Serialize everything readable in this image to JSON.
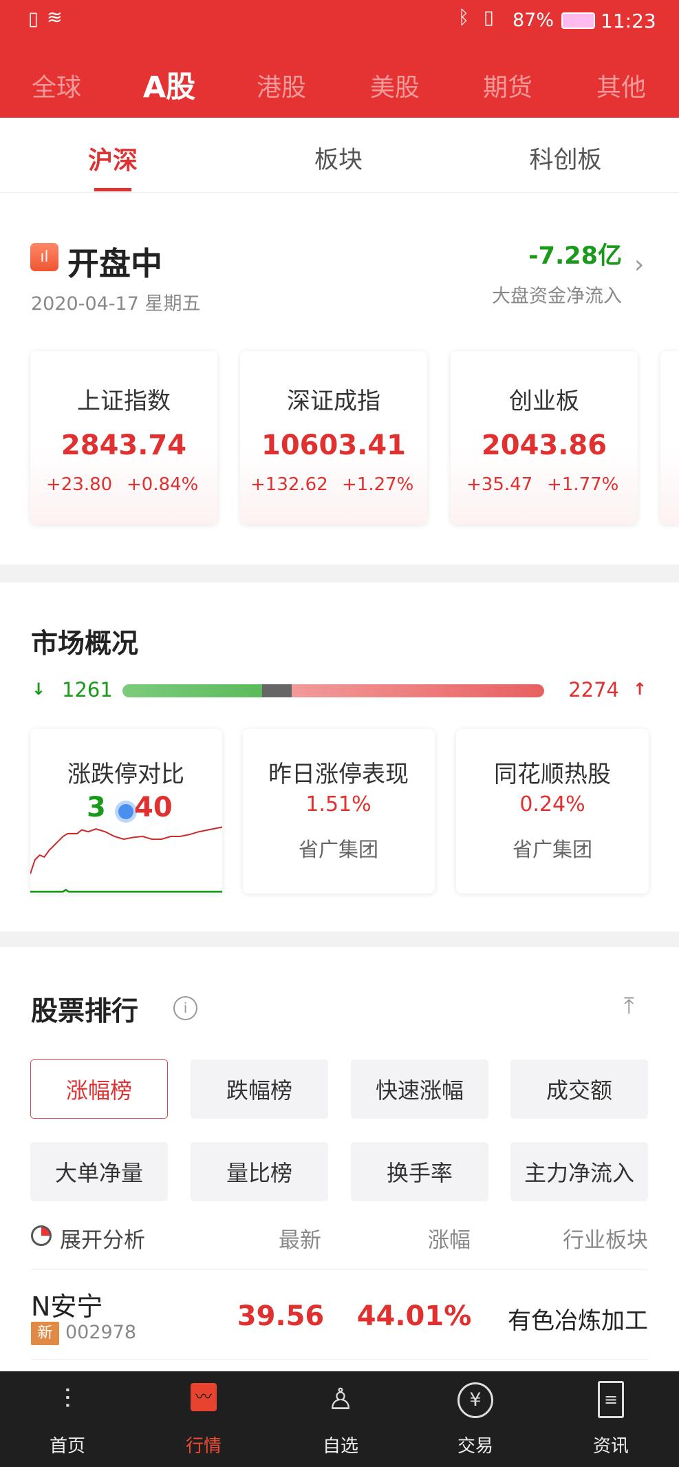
{
  "status": {
    "battery": "87%",
    "time": "11:23"
  },
  "top_tabs": [
    {
      "label": "全球"
    },
    {
      "label": "A股",
      "active": true
    },
    {
      "label": "港股"
    },
    {
      "label": "美股"
    },
    {
      "label": "期货"
    },
    {
      "label": "其他"
    }
  ],
  "sub_tabs": [
    {
      "label": "沪深",
      "active": true
    },
    {
      "label": "板块"
    },
    {
      "label": "科创板"
    }
  ],
  "market_status": {
    "title": "开盘中",
    "date": "2020-04-17 星期五",
    "net_flow": "-7.28亿",
    "net_flow_label": "大盘资金净流入"
  },
  "indices": [
    {
      "name": "上证指数",
      "value": "2843.74",
      "change": "+23.80",
      "pct": "+0.84%"
    },
    {
      "name": "深证成指",
      "value": "10603.41",
      "change": "+132.62",
      "pct": "+1.27%"
    },
    {
      "name": "创业板",
      "value": "2043.86",
      "change": "+35.47",
      "pct": "+1.77%"
    }
  ],
  "overview": {
    "title": "市场概况",
    "down": "1261",
    "up": "2274",
    "cards": [
      {
        "title": "涨跌停对比",
        "down": "3",
        "up": "40"
      },
      {
        "title": "昨日涨停表现",
        "value": "1.51%",
        "sub": "省广集团"
      },
      {
        "title": "同花顺热股",
        "value": "0.24%",
        "sub": "省广集团"
      }
    ]
  },
  "ranking": {
    "title": "股票排行",
    "buttons": [
      "涨幅榜",
      "跌幅榜",
      "快速涨幅",
      "成交额",
      "大单净量",
      "量比榜",
      "换手率",
      "主力净流入"
    ],
    "headers": {
      "analysis": "展开分析",
      "latest": "最新",
      "change": "涨幅",
      "sector": "行业板块"
    },
    "rows": [
      {
        "name": "N安宁",
        "badge": "新",
        "code": "002978",
        "price": "39.56",
        "pct": "44.01%",
        "sector": "有色冶炼加工"
      }
    ]
  },
  "bottom_nav": [
    {
      "label": "首页"
    },
    {
      "label": "行情",
      "active": true
    },
    {
      "label": "自选"
    },
    {
      "label": "交易"
    },
    {
      "label": "资讯"
    }
  ],
  "colors": {
    "brand": "#e53333",
    "up": "#e03030",
    "down": "#1a9a1a"
  }
}
